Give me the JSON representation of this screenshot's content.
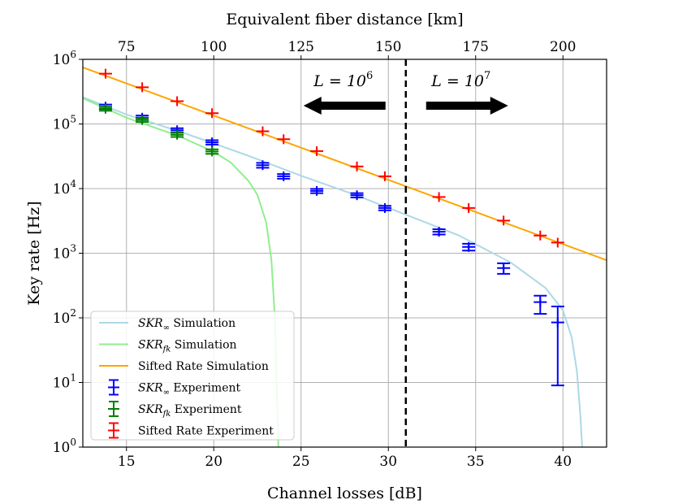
{
  "chart_data": {
    "type": "line",
    "xlabel": "Channel losses [dB]",
    "x2label": "Equivalent fiber distance [km]",
    "ylabel": "Key rate [Hz]",
    "xlim": [
      12.5,
      42.5
    ],
    "ylim_log10": [
      0,
      6
    ],
    "yscale": "log",
    "grid": true,
    "legend_placement": "lower-left",
    "x_ticks": [
      "15",
      "20",
      "25",
      "30",
      "35",
      "40"
    ],
    "x2_ticks": [
      {
        "label": "75",
        "db": 15.0
      },
      {
        "label": "100",
        "db": 20.0
      },
      {
        "label": "125",
        "db": 25.0
      },
      {
        "label": "150",
        "db": 30.0
      },
      {
        "label": "175",
        "db": 35.0
      },
      {
        "label": "200",
        "db": 40.0
      }
    ],
    "y_ticks": [
      {
        "base": "10",
        "exp": "0",
        "value": 1
      },
      {
        "base": "10",
        "exp": "1",
        "value": 10
      },
      {
        "base": "10",
        "exp": "2",
        "value": 100
      },
      {
        "base": "10",
        "exp": "3",
        "value": 1000
      },
      {
        "base": "10",
        "exp": "4",
        "value": 10000
      },
      {
        "base": "10",
        "exp": "5",
        "value": 100000
      },
      {
        "base": "10",
        "exp": "6",
        "value": 1000000
      }
    ],
    "divider_x": 31.0,
    "annotations": [
      {
        "prefix": "L = 10",
        "exp": "6",
        "direction": "left"
      },
      {
        "prefix": "L = 10",
        "exp": "7",
        "direction": "right"
      }
    ],
    "colors": {
      "skr_inf_sim": "#add8e6",
      "skr_fk_sim": "#90ee90",
      "sifted_sim": "#ffa500",
      "skr_inf_exp": "#0000ff",
      "skr_fk_exp": "#008000",
      "sifted_exp": "#ff0000",
      "grid": "#b0b0b0"
    },
    "series": [
      {
        "name": "Sifted Rate Simulation",
        "kind": "line",
        "x": [
          12.5,
          42.5
        ],
        "y": [
          750000,
          780
        ]
      },
      {
        "name": "SKR∞ Simulation",
        "kind": "line",
        "x": [
          12.5,
          15,
          18,
          20,
          22,
          25,
          28,
          31,
          34,
          37,
          39,
          40,
          40.5,
          40.8,
          41.0,
          41.1
        ],
        "y": [
          260000,
          140000,
          77000,
          50000,
          32000,
          15800,
          8200,
          3950,
          1900,
          720,
          290,
          130,
          50,
          15,
          3,
          1
        ]
      },
      {
        "name": "SKRfk Simulation",
        "kind": "line",
        "x": [
          12.5,
          15,
          18,
          20,
          21,
          22,
          22.5,
          23,
          23.3,
          23.5,
          23.6,
          23.7
        ],
        "y": [
          250000,
          125000,
          65000,
          37000,
          25000,
          13000,
          8000,
          3000,
          800,
          100,
          10,
          1
        ]
      },
      {
        "name": "Sifted Rate Experiment",
        "kind": "errorbar",
        "x": [
          13.8,
          15.9,
          17.9,
          19.9,
          22.8,
          24.0,
          25.9,
          28.2,
          29.8,
          32.9,
          34.6,
          36.6,
          38.7,
          39.7
        ],
        "y": [
          600000,
          370000,
          225000,
          147000,
          77000,
          58000,
          38000,
          22000,
          15500,
          7400,
          5000,
          3200,
          1880,
          1460
        ]
      },
      {
        "name": "SKR∞ Experiment",
        "kind": "errorbar",
        "x": [
          13.8,
          15.9,
          17.9,
          19.9,
          22.8,
          24.0,
          25.9,
          28.2,
          29.8,
          32.9,
          34.6,
          36.6,
          38.7,
          39.7
        ],
        "y": [
          185000,
          125000,
          80000,
          52000,
          23000,
          15500,
          9200,
          7900,
          5000,
          2150,
          1250,
          590,
          175,
          85
        ],
        "yerr_low": [
          15000,
          10000,
          6000,
          4000,
          2000,
          1300,
          700,
          600,
          400,
          200,
          150,
          110,
          60,
          76
        ],
        "yerr_high": [
          15000,
          10000,
          6000,
          4000,
          2000,
          1300,
          700,
          600,
          400,
          200,
          150,
          110,
          45,
          65
        ]
      },
      {
        "name": "SKRfk Experiment",
        "kind": "errorbar",
        "x": [
          13.8,
          15.9,
          17.9,
          19.9
        ],
        "y": [
          172000,
          115000,
          68000,
          37500
        ],
        "yerr_low": [
          12000,
          8000,
          5000,
          3000
        ],
        "yerr_high": [
          12000,
          8000,
          5000,
          3000
        ]
      }
    ],
    "legend": [
      {
        "sym": "SKR",
        "sub": "∞",
        "text": " Simulation",
        "key": "skr_inf_sim",
        "kind": "line"
      },
      {
        "sym": "SKR",
        "sub": "fk",
        "text": " Simulation",
        "key": "skr_fk_sim",
        "kind": "line"
      },
      {
        "sym": "",
        "sub": "",
        "text": "Sifted Rate Simulation",
        "key": "sifted_sim",
        "kind": "line"
      },
      {
        "sym": "SKR",
        "sub": "∞",
        "text": " Experiment",
        "key": "skr_inf_exp",
        "kind": "errorbar"
      },
      {
        "sym": "SKR",
        "sub": "fk",
        "text": " Experiment",
        "key": "skr_fk_exp",
        "kind": "errorbar"
      },
      {
        "sym": "",
        "sub": "",
        "text": "Sifted Rate Experiment",
        "key": "sifted_exp",
        "kind": "errorbar"
      }
    ]
  }
}
